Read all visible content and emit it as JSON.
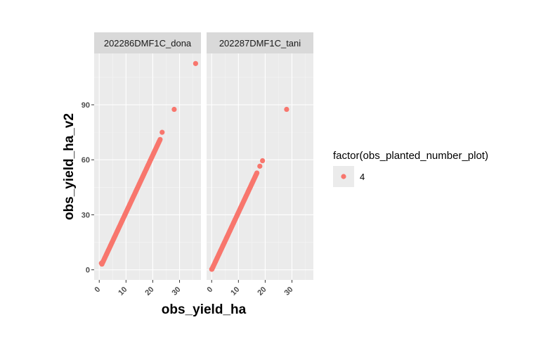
{
  "chart_data": {
    "type": "scatter",
    "xlabel": "obs_yield_ha",
    "ylabel": "obs_yield_ha_v2",
    "xlim": [
      -1.9,
      38
    ],
    "ylim": [
      -5.5,
      118
    ],
    "x_ticks": [
      0,
      10,
      20,
      30
    ],
    "y_ticks": [
      0,
      30,
      60,
      90
    ],
    "x_tick_labels": [
      "0",
      "10",
      "20",
      "30"
    ],
    "y_tick_labels": [
      "0",
      "30",
      "60",
      "90"
    ],
    "grid": true,
    "legend_position": "right",
    "legend": {
      "title": "factor(obs_planted_number_plot)",
      "entries": [
        {
          "label": "4",
          "color": "#F8766D"
        }
      ]
    },
    "point_color": "#F8766D",
    "panels": [
      {
        "name": "202286DMF1C_dona",
        "line": {
          "slope": 3.125,
          "x_start": 1.0,
          "x_end": 22.8,
          "step": 0.15
        },
        "points": [
          {
            "x": 1.0,
            "y": 3.1
          },
          {
            "x": 0.8,
            "y": 3.6
          },
          {
            "x": 23.5,
            "y": 75
          },
          {
            "x": 28,
            "y": 87.5
          },
          {
            "x": 36,
            "y": 112.5
          }
        ]
      },
      {
        "name": "202287DMF1C_tani",
        "line": {
          "slope": 3.125,
          "x_start": 0.1,
          "x_end": 17.0,
          "step": 0.15
        },
        "points": [
          {
            "x": 0.0,
            "y": 0.3
          },
          {
            "x": 18.0,
            "y": 56.5
          },
          {
            "x": 19.0,
            "y": 59.5
          },
          {
            "x": 28,
            "y": 87.5
          }
        ]
      }
    ]
  }
}
